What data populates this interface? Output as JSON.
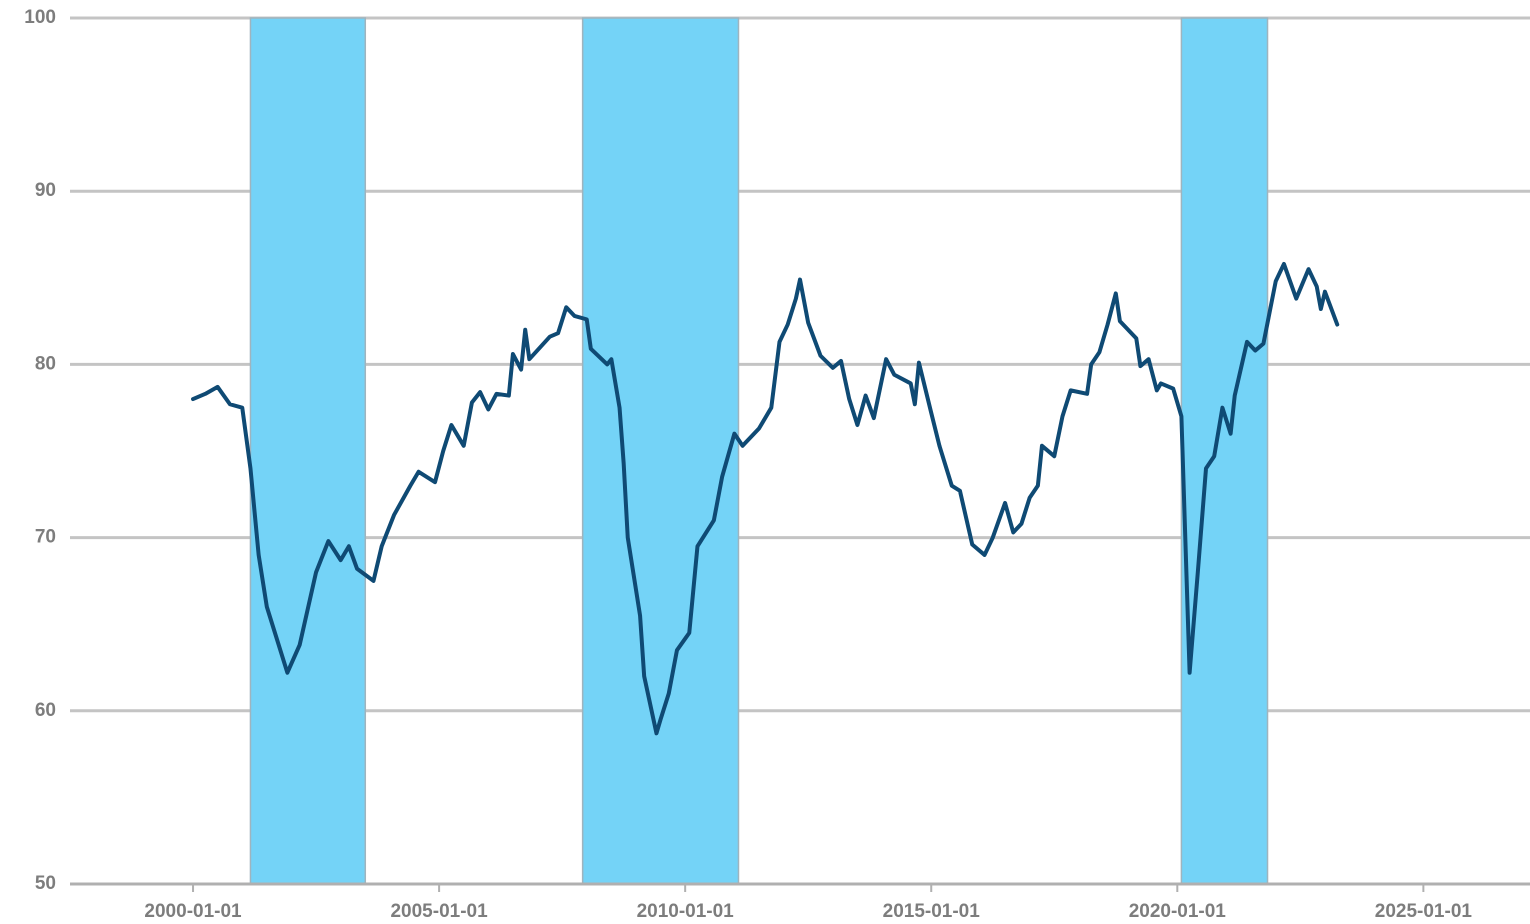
{
  "chart_data": {
    "type": "line",
    "color": "#0f4a74",
    "band_color": "#74d3f7",
    "grid": true,
    "shaded_periods": [
      [
        "2001-03-01",
        "2003-07-01"
      ],
      [
        "2007-12-01",
        "2011-02-01"
      ],
      [
        "2020-02-01",
        "2021-11-01"
      ]
    ],
    "xlim": [
      "1997-07-01",
      "2027-03-01"
    ],
    "xticks": [
      "2000-01-01",
      "2005-01-01",
      "2010-01-01",
      "2015-01-01",
      "2020-01-01",
      "2025-01-01"
    ],
    "ylim": [
      50,
      100
    ],
    "yticks": [
      50,
      60,
      70,
      80,
      90,
      100
    ],
    "x": [
      "2000-01-01",
      "2000-04-01",
      "2000-07-01",
      "2000-10-01",
      "2001-01-01",
      "2001-03-01",
      "2001-05-01",
      "2001-07-01",
      "2001-12-01",
      "2002-03-01",
      "2002-07-01",
      "2002-10-01",
      "2003-01-01",
      "2003-03-01",
      "2003-05-01",
      "2003-09-01",
      "2003-11-01",
      "2004-02-01",
      "2004-06-01",
      "2004-08-01",
      "2004-12-01",
      "2005-02-01",
      "2005-04-01",
      "2005-07-01",
      "2005-09-01",
      "2005-11-01",
      "2006-01-01",
      "2006-03-01",
      "2006-06-01",
      "2006-07-01",
      "2006-09-01",
      "2006-10-01",
      "2006-11-01",
      "2007-04-01",
      "2007-06-01",
      "2007-08-01",
      "2007-10-01",
      "2008-01-01",
      "2008-02-01",
      "2008-06-01",
      "2008-07-01",
      "2008-09-01",
      "2008-10-01",
      "2008-11-01",
      "2009-02-01",
      "2009-03-01",
      "2009-06-01",
      "2009-07-01",
      "2009-09-01",
      "2009-11-01",
      "2010-02-01",
      "2010-04-01",
      "2010-08-01",
      "2010-10-01",
      "2011-01-01",
      "2011-03-01",
      "2011-07-01",
      "2011-10-01",
      "2011-12-01",
      "2012-02-01",
      "2012-04-01",
      "2012-05-01",
      "2012-07-01",
      "2012-10-01",
      "2013-01-01",
      "2013-03-01",
      "2013-05-01",
      "2013-07-01",
      "2013-09-01",
      "2013-11-01",
      "2014-02-01",
      "2014-04-01",
      "2014-08-01",
      "2014-09-01",
      "2014-10-01",
      "2015-01-01",
      "2015-03-01",
      "2015-06-01",
      "2015-08-01",
      "2015-11-01",
      "2016-02-01",
      "2016-04-01",
      "2016-07-01",
      "2016-09-01",
      "2016-11-01",
      "2017-01-01",
      "2017-03-01",
      "2017-04-01",
      "2017-07-01",
      "2017-09-01",
      "2017-11-01",
      "2018-03-01",
      "2018-04-01",
      "2018-06-01",
      "2018-08-01",
      "2018-10-01",
      "2018-11-01",
      "2019-03-01",
      "2019-04-01",
      "2019-06-01",
      "2019-08-01",
      "2019-09-01",
      "2019-12-01",
      "2020-02-01",
      "2020-04-01",
      "2020-06-01",
      "2020-08-01",
      "2020-10-01",
      "2020-12-01",
      "2021-02-01",
      "2021-03-01",
      "2021-06-01",
      "2021-08-01",
      "2021-10-01",
      "2022-01-01",
      "2022-03-01",
      "2022-06-01",
      "2022-09-01",
      "2022-11-01",
      "2022-12-01",
      "2023-01-01",
      "2023-04-01"
    ],
    "values": [
      78.0,
      78.3,
      78.7,
      77.7,
      77.5,
      74.0,
      69.0,
      66.0,
      62.2,
      63.8,
      68.0,
      69.8,
      68.7,
      69.5,
      68.2,
      67.5,
      69.5,
      71.3,
      73.0,
      73.8,
      73.2,
      75.0,
      76.5,
      75.3,
      77.8,
      78.4,
      77.4,
      78.3,
      78.2,
      80.6,
      79.7,
      82.0,
      80.3,
      81.6,
      81.8,
      83.3,
      82.8,
      82.6,
      80.9,
      80.0,
      80.3,
      77.5,
      74.3,
      70.0,
      65.5,
      62.0,
      58.7,
      59.5,
      61.0,
      63.5,
      64.5,
      69.5,
      71.0,
      73.5,
      76.0,
      75.3,
      76.3,
      77.5,
      81.3,
      82.3,
      83.8,
      84.9,
      82.4,
      80.5,
      79.8,
      80.2,
      78.0,
      76.5,
      78.2,
      76.9,
      80.3,
      79.4,
      78.9,
      77.7,
      80.1,
      77.2,
      75.3,
      73.0,
      72.7,
      69.6,
      69.0,
      70.0,
      72.0,
      70.3,
      70.8,
      72.3,
      73.0,
      75.3,
      74.7,
      77.0,
      78.5,
      78.3,
      80.0,
      80.7,
      82.3,
      84.1,
      82.5,
      81.5,
      79.9,
      80.3,
      78.5,
      78.9,
      78.6,
      77.0,
      62.2,
      68.0,
      74.0,
      74.7,
      77.5,
      76.0,
      78.2,
      81.3,
      80.8,
      81.2,
      84.8,
      85.8,
      83.8,
      85.5,
      84.5,
      83.2,
      84.2,
      82.3
    ]
  }
}
